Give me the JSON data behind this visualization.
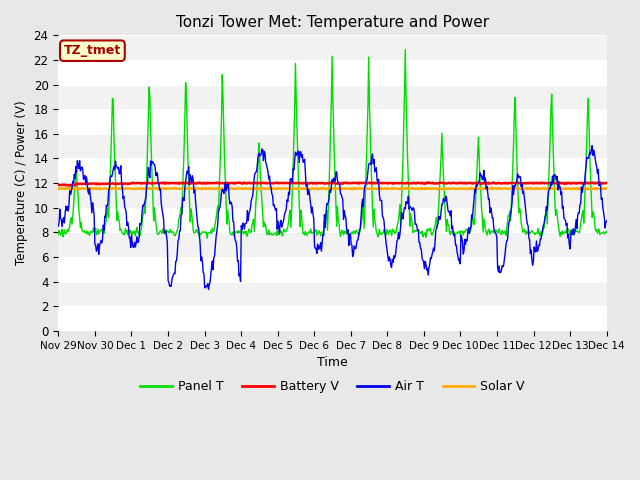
{
  "title": "Tonzi Tower Met: Temperature and Power",
  "xlabel": "Time",
  "ylabel": "Temperature (C) / Power (V)",
  "ylim": [
    0,
    24
  ],
  "yticks": [
    0,
    2,
    4,
    6,
    8,
    10,
    12,
    14,
    16,
    18,
    20,
    22,
    24
  ],
  "x_labels": [
    "Nov 29",
    "Nov 30",
    "Dec 1",
    "Dec 2",
    "Dec 3",
    "Dec 4",
    "Dec 5",
    "Dec 6",
    "Dec 7",
    "Dec 8",
    "Dec 9",
    "Dec 10",
    "Dec 11",
    "Dec 12",
    "Dec 13",
    "Dec 14"
  ],
  "background_color": "#e8e8e8",
  "plot_bg_color": "#f2f2f2",
  "grid_color": "#ffffff",
  "panel_color": "#00dd00",
  "battery_color": "#ff0000",
  "air_color": "#0000ee",
  "solar_color": "#ffaa00",
  "tag_text": "TZ_tmet",
  "tag_facecolor": "#ffffcc",
  "tag_edgecolor": "#aa0000",
  "tag_textcolor": "#aa0000",
  "panel_peaks": [
    14,
    21,
    22,
    22,
    22,
    16,
    22.5,
    23,
    22.5,
    23.5,
    16.5,
    16.5,
    20.5,
    21,
    20.5,
    19.5
  ],
  "panel_nights": [
    8,
    8,
    8,
    8,
    8,
    8,
    8,
    8,
    8,
    8,
    8,
    8,
    8,
    8,
    8,
    8
  ],
  "air_mins": [
    9,
    6.8,
    6.8,
    3.8,
    3.7,
    8.5,
    8.5,
    6.5,
    6.5,
    5.5,
    5.0,
    7.0,
    5.0,
    6.5,
    8.0,
    9.0
  ],
  "air_maxs": [
    13.5,
    13.5,
    13.5,
    13.0,
    12.0,
    14.5,
    14.5,
    12.5,
    14.0,
    10.5,
    10.5,
    12.5,
    12.5,
    12.5,
    14.5,
    14.0
  ],
  "battery_level": 12.0,
  "solar_level": 11.55
}
